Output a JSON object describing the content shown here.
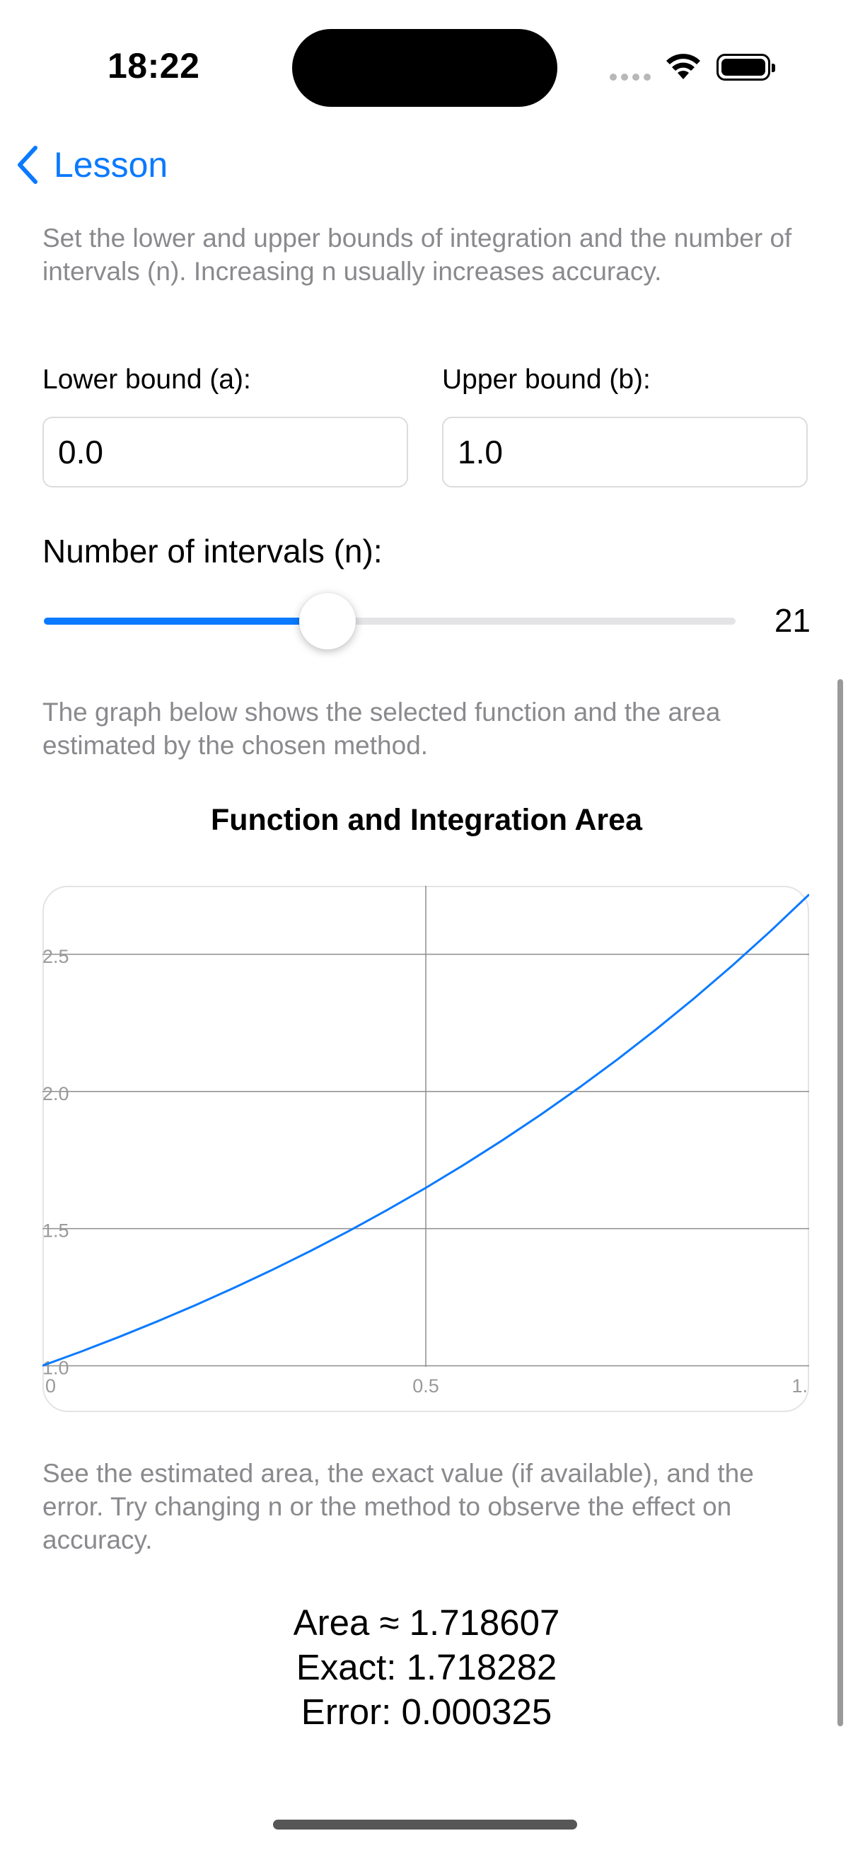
{
  "status_bar": {
    "time": "18:22"
  },
  "nav": {
    "back_label": "Lesson"
  },
  "bounds_description": "Set the lower and upper bounds of integration and the number of intervals (n). Increasing n usually increases accuracy.",
  "lower_bound": {
    "label": "Lower bound (a):",
    "value": "0.0"
  },
  "upper_bound": {
    "label": "Upper bound (b):",
    "value": "1.0"
  },
  "intervals": {
    "label": "Number of intervals (n):",
    "value": "21",
    "fraction": 0.41
  },
  "graph_description": "The graph below shows the selected function and the area estimated by the chosen method.",
  "results_description": "See the estimated area, the exact value (if available), and the error. Try changing n or the method to observe the effect on accuracy.",
  "results": {
    "area": "Area ≈ 1.718607",
    "exact": "Exact: 1.718282",
    "error": "Error: 0.000325"
  },
  "colors": {
    "accent": "#0a7aff",
    "secondary_text": "#8a8a8e"
  },
  "chart_data": {
    "type": "line",
    "title": "Function and Integration Area",
    "xlabel": "",
    "ylabel": "",
    "xlim": [
      0,
      1
    ],
    "ylim": [
      0.996,
      2.75
    ],
    "x_ticks": [
      "0",
      "0.5",
      "1."
    ],
    "y_ticks": [
      "1.0",
      "1.5",
      "2.0",
      "2.5"
    ],
    "grid": true,
    "series": [
      {
        "color": "#0a7aff",
        "x": [
          0,
          0.05,
          0.1,
          0.15,
          0.2,
          0.25,
          0.3,
          0.35,
          0.4,
          0.45,
          0.5,
          0.55,
          0.6,
          0.65,
          0.7,
          0.75,
          0.8,
          0.85,
          0.9,
          0.95,
          1.0
        ],
        "y": [
          1.0,
          1.0513,
          1.1052,
          1.1618,
          1.2214,
          1.284,
          1.3499,
          1.4191,
          1.4918,
          1.5683,
          1.6487,
          1.7333,
          1.8221,
          1.9155,
          2.0138,
          2.117,
          2.2255,
          2.3396,
          2.4596,
          2.5857,
          2.7183
        ]
      }
    ]
  }
}
